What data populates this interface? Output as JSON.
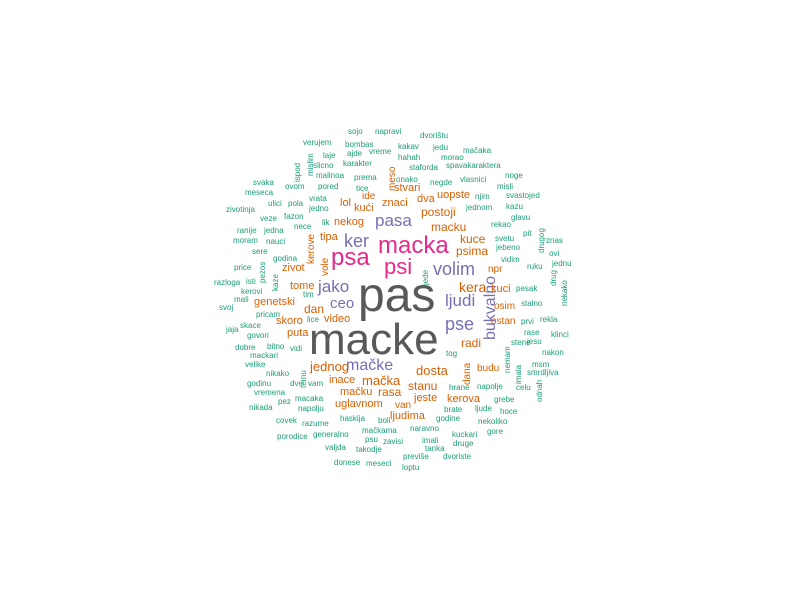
{
  "chart_data": {
    "type": "wordcloud",
    "colors": {
      "tier1": "#595959",
      "tier2": "#e6298a",
      "tier3": "#7570b3",
      "tier4": "#d95f02",
      "tier5": "#1b9e77"
    },
    "words": [
      {
        "text": "pas",
        "weight": 1,
        "color": "tier1"
      },
      {
        "text": "macke",
        "weight": 1,
        "color": "tier1"
      },
      {
        "text": "macka",
        "weight": 2,
        "color": "tier2"
      },
      {
        "text": "psa",
        "weight": 2,
        "color": "tier2"
      },
      {
        "text": "psi",
        "weight": 2,
        "color": "tier2"
      },
      {
        "text": "ker",
        "weight": 3,
        "color": "tier3"
      },
      {
        "text": "pasa",
        "weight": 3,
        "color": "tier3"
      },
      {
        "text": "volim",
        "weight": 3,
        "color": "tier3"
      },
      {
        "text": "jako",
        "weight": 3,
        "color": "tier3"
      },
      {
        "text": "ljudi",
        "weight": 3,
        "color": "tier3"
      },
      {
        "text": "ceo",
        "weight": 3,
        "color": "tier3"
      },
      {
        "text": "pse",
        "weight": 3,
        "color": "tier3"
      },
      {
        "text": "mačke",
        "weight": 3,
        "color": "tier3"
      },
      {
        "text": "bukvalno",
        "weight": 3,
        "color": "tier3"
      },
      {
        "text": "kera",
        "weight": 4,
        "color": "tier4"
      },
      {
        "text": "dosta",
        "weight": 4,
        "color": "tier4"
      },
      {
        "text": "postoji",
        "weight": 4,
        "color": "tier4"
      },
      {
        "text": "macku",
        "weight": 4,
        "color": "tier4"
      },
      {
        "text": "psima",
        "weight": 4,
        "color": "tier4"
      },
      {
        "text": "kuce",
        "weight": 4,
        "color": "tier4"
      },
      {
        "text": "radi",
        "weight": 4,
        "color": "tier4"
      },
      {
        "text": "jednog",
        "weight": 4,
        "color": "tier4"
      },
      {
        "text": "mačka",
        "weight": 4,
        "color": "tier4"
      },
      {
        "text": "stanu",
        "weight": 4,
        "color": "tier4"
      },
      {
        "text": "rasa",
        "weight": 4,
        "color": "tier4"
      },
      {
        "text": "dan",
        "weight": 4,
        "color": "tier4"
      },
      {
        "text": "kuci",
        "weight": 4,
        "color": "tier4"
      },
      {
        "text": "uopste",
        "weight": 5,
        "color": "tier4"
      },
      {
        "text": "znaci",
        "weight": 5,
        "color": "tier4"
      },
      {
        "text": "kući",
        "weight": 5,
        "color": "tier4"
      },
      {
        "text": "lol",
        "weight": 5,
        "color": "tier4"
      },
      {
        "text": "dva",
        "weight": 5,
        "color": "tier4"
      },
      {
        "text": "stvari",
        "weight": 5,
        "color": "tier4"
      },
      {
        "text": "nekog",
        "weight": 5,
        "color": "tier4"
      },
      {
        "text": "tipa",
        "weight": 5,
        "color": "tier4"
      },
      {
        "text": "vole",
        "weight": 5,
        "color": "tier4"
      },
      {
        "text": "kerove",
        "weight": 5,
        "color": "tier4"
      },
      {
        "text": "zivot",
        "weight": 5,
        "color": "tier4"
      },
      {
        "text": "tome",
        "weight": 5,
        "color": "tier4"
      },
      {
        "text": "genetski",
        "weight": 5,
        "color": "tier4"
      },
      {
        "text": "skoro",
        "weight": 5,
        "color": "tier4"
      },
      {
        "text": "puta",
        "weight": 5,
        "color": "tier4"
      },
      {
        "text": "video",
        "weight": 5,
        "color": "tier4"
      },
      {
        "text": "inace",
        "weight": 5,
        "color": "tier4"
      },
      {
        "text": "mačku",
        "weight": 5,
        "color": "tier4"
      },
      {
        "text": "uglavnom",
        "weight": 5,
        "color": "tier4"
      },
      {
        "text": "ljudima",
        "weight": 5,
        "color": "tier4"
      },
      {
        "text": "jeste",
        "weight": 5,
        "color": "tier4"
      },
      {
        "text": "kerova",
        "weight": 5,
        "color": "tier4"
      },
      {
        "text": "budu",
        "weight": 5,
        "color": "tier4"
      },
      {
        "text": "dana",
        "weight": 5,
        "color": "tier4"
      },
      {
        "text": "osim",
        "weight": 5,
        "color": "tier4"
      },
      {
        "text": "ostan",
        "weight": 5,
        "color": "tier4"
      },
      {
        "text": "npr",
        "weight": 5,
        "color": "tier4"
      },
      {
        "text": "meso",
        "weight": 5,
        "color": "tier4"
      },
      {
        "text": "ide",
        "weight": 5,
        "color": "tier4"
      },
      {
        "text": "van",
        "weight": 5,
        "color": "tier4"
      },
      {
        "text": "sojo",
        "weight": 6,
        "color": "tier5"
      },
      {
        "text": "napravi",
        "weight": 6,
        "color": "tier5"
      },
      {
        "text": "verujem",
        "weight": 6,
        "color": "tier5"
      },
      {
        "text": "bombas",
        "weight": 6,
        "color": "tier5"
      },
      {
        "text": "dvorištu",
        "weight": 6,
        "color": "tier5"
      },
      {
        "text": "jedu",
        "weight": 6,
        "color": "tier5"
      },
      {
        "text": "mačaka",
        "weight": 6,
        "color": "tier5"
      },
      {
        "text": "laje",
        "weight": 6,
        "color": "tier5"
      },
      {
        "text": "ajde",
        "weight": 6,
        "color": "tier5"
      },
      {
        "text": "vreme",
        "weight": 6,
        "color": "tier5"
      },
      {
        "text": "kakav",
        "weight": 6,
        "color": "tier5"
      },
      {
        "text": "hahah",
        "weight": 6,
        "color": "tier5"
      },
      {
        "text": "morao",
        "weight": 6,
        "color": "tier5"
      },
      {
        "text": "ispod",
        "weight": 6,
        "color": "tier5"
      },
      {
        "text": "mislim",
        "weight": 6,
        "color": "tier5"
      },
      {
        "text": "slicno",
        "weight": 6,
        "color": "tier5"
      },
      {
        "text": "karakter",
        "weight": 6,
        "color": "tier5"
      },
      {
        "text": "staforda",
        "weight": 6,
        "color": "tier5"
      },
      {
        "text": "spavakaraktera",
        "weight": 6,
        "color": "tier5"
      },
      {
        "text": "malinoa",
        "weight": 6,
        "color": "tier5"
      },
      {
        "text": "prema",
        "weight": 6,
        "color": "tier5"
      },
      {
        "text": "onako",
        "weight": 6,
        "color": "tier5"
      },
      {
        "text": "negde",
        "weight": 6,
        "color": "tier5"
      },
      {
        "text": "vlasnici",
        "weight": 6,
        "color": "tier5"
      },
      {
        "text": "noge",
        "weight": 6,
        "color": "tier5"
      },
      {
        "text": "svaka",
        "weight": 6,
        "color": "tier5"
      },
      {
        "text": "ovom",
        "weight": 6,
        "color": "tier5"
      },
      {
        "text": "pored",
        "weight": 6,
        "color": "tier5"
      },
      {
        "text": "tice",
        "weight": 6,
        "color": "tier5"
      },
      {
        "text": "njim",
        "weight": 6,
        "color": "tier5"
      },
      {
        "text": "misli",
        "weight": 6,
        "color": "tier5"
      },
      {
        "text": "meseca",
        "weight": 6,
        "color": "tier5"
      },
      {
        "text": "vrata",
        "weight": 6,
        "color": "tier5"
      },
      {
        "text": "svastojed",
        "weight": 6,
        "color": "tier5"
      },
      {
        "text": "zivotinja",
        "weight": 6,
        "color": "tier5"
      },
      {
        "text": "ulici",
        "weight": 6,
        "color": "tier5"
      },
      {
        "text": "pola",
        "weight": 6,
        "color": "tier5"
      },
      {
        "text": "jedno",
        "weight": 6,
        "color": "tier5"
      },
      {
        "text": "jednom",
        "weight": 6,
        "color": "tier5"
      },
      {
        "text": "kazu",
        "weight": 6,
        "color": "tier5"
      },
      {
        "text": "veze",
        "weight": 6,
        "color": "tier5"
      },
      {
        "text": "fazon",
        "weight": 6,
        "color": "tier5"
      },
      {
        "text": "glavu",
        "weight": 6,
        "color": "tier5"
      },
      {
        "text": "ranije",
        "weight": 6,
        "color": "tier5"
      },
      {
        "text": "jedna",
        "weight": 6,
        "color": "tier5"
      },
      {
        "text": "nece",
        "weight": 6,
        "color": "tier5"
      },
      {
        "text": "lik",
        "weight": 6,
        "color": "tier5"
      },
      {
        "text": "rekao",
        "weight": 6,
        "color": "tier5"
      },
      {
        "text": "pit",
        "weight": 6,
        "color": "tier5"
      },
      {
        "text": "moram",
        "weight": 6,
        "color": "tier5"
      },
      {
        "text": "nauci",
        "weight": 6,
        "color": "tier5"
      },
      {
        "text": "svetu",
        "weight": 6,
        "color": "tier5"
      },
      {
        "text": "drugog",
        "weight": 6,
        "color": "tier5"
      },
      {
        "text": "znas",
        "weight": 6,
        "color": "tier5"
      },
      {
        "text": "sere",
        "weight": 6,
        "color": "tier5"
      },
      {
        "text": "jebeno",
        "weight": 6,
        "color": "tier5"
      },
      {
        "text": "ovi",
        "weight": 6,
        "color": "tier5"
      },
      {
        "text": "godina",
        "weight": 6,
        "color": "tier5"
      },
      {
        "text": "vidim",
        "weight": 6,
        "color": "tier5"
      },
      {
        "text": "price",
        "weight": 6,
        "color": "tier5"
      },
      {
        "text": "pezos",
        "weight": 6,
        "color": "tier5"
      },
      {
        "text": "jede",
        "weight": 6,
        "color": "tier5"
      },
      {
        "text": "ruku",
        "weight": 6,
        "color": "tier5"
      },
      {
        "text": "drug",
        "weight": 6,
        "color": "tier5"
      },
      {
        "text": "jednu",
        "weight": 6,
        "color": "tier5"
      },
      {
        "text": "razloga",
        "weight": 6,
        "color": "tier5"
      },
      {
        "text": "isti",
        "weight": 6,
        "color": "tier5"
      },
      {
        "text": "kaze",
        "weight": 6,
        "color": "tier5"
      },
      {
        "text": "pesak",
        "weight": 6,
        "color": "tier5"
      },
      {
        "text": "nekako",
        "weight": 6,
        "color": "tier5"
      },
      {
        "text": "kerovi",
        "weight": 6,
        "color": "tier5"
      },
      {
        "text": "mali",
        "weight": 6,
        "color": "tier5"
      },
      {
        "text": "svoj",
        "weight": 6,
        "color": "tier5"
      },
      {
        "text": "tim",
        "weight": 6,
        "color": "tier5"
      },
      {
        "text": "stalno",
        "weight": 6,
        "color": "tier5"
      },
      {
        "text": "pricam",
        "weight": 6,
        "color": "tier5"
      },
      {
        "text": "lice",
        "weight": 6,
        "color": "tier5"
      },
      {
        "text": "prvi",
        "weight": 6,
        "color": "tier5"
      },
      {
        "text": "rekla",
        "weight": 6,
        "color": "tier5"
      },
      {
        "text": "jaja",
        "weight": 6,
        "color": "tier5"
      },
      {
        "text": "skace",
        "weight": 6,
        "color": "tier5"
      },
      {
        "text": "rase",
        "weight": 6,
        "color": "tier5"
      },
      {
        "text": "klinci",
        "weight": 6,
        "color": "tier5"
      },
      {
        "text": "govori",
        "weight": 6,
        "color": "tier5"
      },
      {
        "text": "jesu",
        "weight": 6,
        "color": "tier5"
      },
      {
        "text": "dobre",
        "weight": 6,
        "color": "tier5"
      },
      {
        "text": "bitno",
        "weight": 6,
        "color": "tier5"
      },
      {
        "text": "vidi",
        "weight": 6,
        "color": "tier5"
      },
      {
        "text": "stene",
        "weight": 6,
        "color": "tier5"
      },
      {
        "text": "nakon",
        "weight": 6,
        "color": "tier5"
      },
      {
        "text": "mackari",
        "weight": 6,
        "color": "tier5"
      },
      {
        "text": "tog",
        "weight": 6,
        "color": "tier5"
      },
      {
        "text": "nemam",
        "weight": 6,
        "color": "tier5"
      },
      {
        "text": "velike",
        "weight": 6,
        "color": "tier5"
      },
      {
        "text": "temu",
        "weight": 6,
        "color": "tier5"
      },
      {
        "text": "imala",
        "weight": 6,
        "color": "tier5"
      },
      {
        "text": "msm",
        "weight": 6,
        "color": "tier5"
      },
      {
        "text": "nikako",
        "weight": 6,
        "color": "tier5"
      },
      {
        "text": "smrdljiva",
        "weight": 6,
        "color": "tier5"
      },
      {
        "text": "godinu",
        "weight": 6,
        "color": "tier5"
      },
      {
        "text": "dve",
        "weight": 6,
        "color": "tier5"
      },
      {
        "text": "vam",
        "weight": 6,
        "color": "tier5"
      },
      {
        "text": "hrane",
        "weight": 6,
        "color": "tier5"
      },
      {
        "text": "napolje",
        "weight": 6,
        "color": "tier5"
      },
      {
        "text": "celu",
        "weight": 6,
        "color": "tier5"
      },
      {
        "text": "vremena",
        "weight": 6,
        "color": "tier5"
      },
      {
        "text": "macaka",
        "weight": 6,
        "color": "tier5"
      },
      {
        "text": "odnah",
        "weight": 6,
        "color": "tier5"
      },
      {
        "text": "nikada",
        "weight": 6,
        "color": "tier5"
      },
      {
        "text": "pez",
        "weight": 6,
        "color": "tier5"
      },
      {
        "text": "grebe",
        "weight": 6,
        "color": "tier5"
      },
      {
        "text": "napolju",
        "weight": 6,
        "color": "tier5"
      },
      {
        "text": "brate",
        "weight": 6,
        "color": "tier5"
      },
      {
        "text": "ljude",
        "weight": 6,
        "color": "tier5"
      },
      {
        "text": "hoce",
        "weight": 6,
        "color": "tier5"
      },
      {
        "text": "covek",
        "weight": 6,
        "color": "tier5"
      },
      {
        "text": "haskija",
        "weight": 6,
        "color": "tier5"
      },
      {
        "text": "boli",
        "weight": 6,
        "color": "tier5"
      },
      {
        "text": "godine",
        "weight": 6,
        "color": "tier5"
      },
      {
        "text": "nekoliko",
        "weight": 6,
        "color": "tier5"
      },
      {
        "text": "razume",
        "weight": 6,
        "color": "tier5"
      },
      {
        "text": "naravno",
        "weight": 6,
        "color": "tier5"
      },
      {
        "text": "kuckari",
        "weight": 6,
        "color": "tier5"
      },
      {
        "text": "gore",
        "weight": 6,
        "color": "tier5"
      },
      {
        "text": "porodice",
        "weight": 6,
        "color": "tier5"
      },
      {
        "text": "generalno",
        "weight": 6,
        "color": "tier5"
      },
      {
        "text": "mačkama",
        "weight": 6,
        "color": "tier5"
      },
      {
        "text": "imali",
        "weight": 6,
        "color": "tier5"
      },
      {
        "text": "druge",
        "weight": 6,
        "color": "tier5"
      },
      {
        "text": "valjda",
        "weight": 6,
        "color": "tier5"
      },
      {
        "text": "psu",
        "weight": 6,
        "color": "tier5"
      },
      {
        "text": "takodje",
        "weight": 6,
        "color": "tier5"
      },
      {
        "text": "zavisi",
        "weight": 6,
        "color": "tier5"
      },
      {
        "text": "tanka",
        "weight": 6,
        "color": "tier5"
      },
      {
        "text": "previše",
        "weight": 6,
        "color": "tier5"
      },
      {
        "text": "dvoriste",
        "weight": 6,
        "color": "tier5"
      },
      {
        "text": "donese",
        "weight": 6,
        "color": "tier5"
      },
      {
        "text": "meseci",
        "weight": 6,
        "color": "tier5"
      },
      {
        "text": "loptu",
        "weight": 6,
        "color": "tier5"
      }
    ]
  }
}
